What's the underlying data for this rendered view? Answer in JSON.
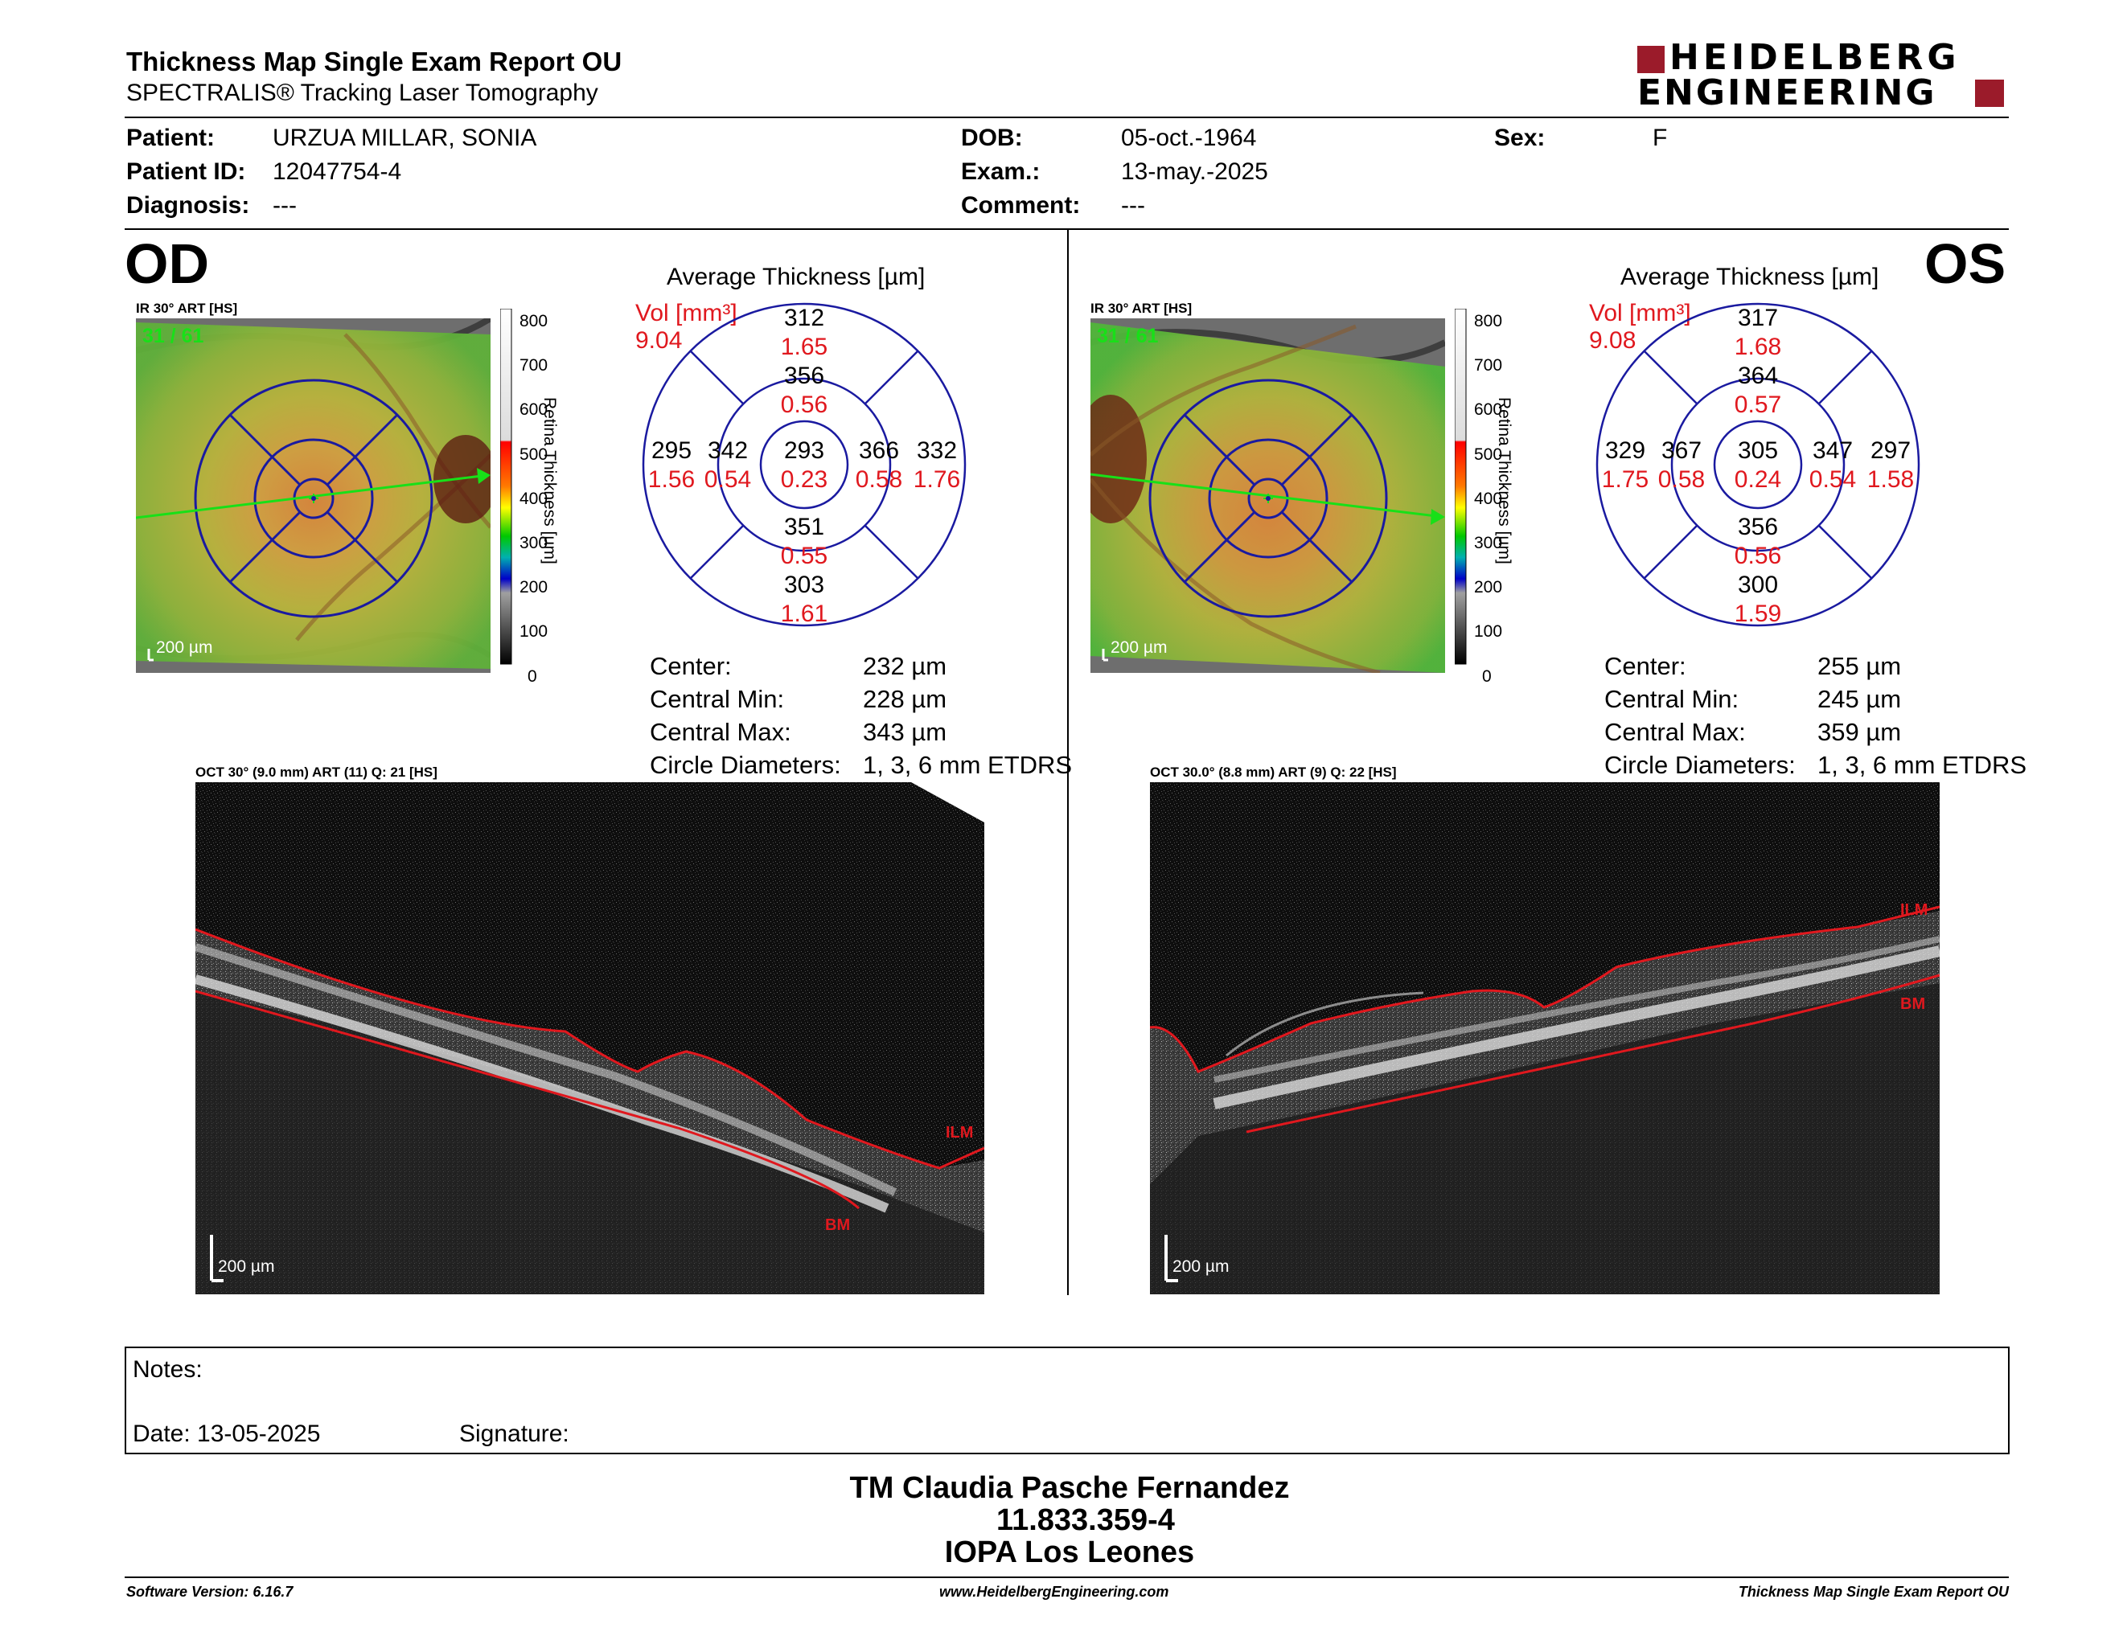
{
  "header": {
    "title": "Thickness Map Single Exam Report OU",
    "subtitle": "SPECTRALIS® Tracking Laser Tomography",
    "logo_line1": "HEIDELBERG",
    "logo_line2": "ENGINEERING"
  },
  "patient": {
    "patient_label": "Patient:",
    "patient_value": "URZUA MILLAR, SONIA",
    "id_label": "Patient ID:",
    "id_value": "12047754-4",
    "diagnosis_label": "Diagnosis:",
    "diagnosis_value": "---",
    "dob_label": "DOB:",
    "dob_value": "05-oct.-1964",
    "exam_label": "Exam.:",
    "exam_value": "13-may.-2025",
    "comment_label": "Comment:",
    "comment_value": "---",
    "sex_label": "Sex:",
    "sex_value": "F"
  },
  "od": {
    "eye": "OD",
    "ir_label": "IR 30° ART [HS]",
    "frame": "31 / 61",
    "scalebar": "200 µm",
    "chart_title": "Average Thickness [µm]",
    "vol_label": "Vol [mm³]",
    "vol_value": "9.04",
    "grid": {
      "center": {
        "t": "293",
        "v": "0.23"
      },
      "inner_sup": {
        "t": "356",
        "v": "0.56"
      },
      "inner_inf": {
        "t": "351",
        "v": "0.55"
      },
      "inner_left": {
        "t": "342",
        "v": "0.54"
      },
      "inner_right": {
        "t": "366",
        "v": "0.58"
      },
      "outer_sup": {
        "t": "312",
        "v": "1.65"
      },
      "outer_inf": {
        "t": "303",
        "v": "1.61"
      },
      "outer_left": {
        "t": "295",
        "v": "1.56"
      },
      "outer_right": {
        "t": "332",
        "v": "1.76"
      }
    },
    "stats": {
      "center_label": "Center:",
      "center_value": "232 µm",
      "min_label": "Central Min:",
      "min_value": "228 µm",
      "max_label": "Central Max:",
      "max_value": "343 µm",
      "diam_label": "Circle Diameters:",
      "diam_value": "1, 3, 6 mm ETDRS"
    },
    "oct_label": "OCT 30° (9.0 mm) ART (11) Q: 21 [HS]",
    "oct_scalebar": "200 µm",
    "ilm": "ILM",
    "bm": "BM"
  },
  "os": {
    "eye": "OS",
    "ir_label": "IR 30° ART [HS]",
    "frame": "31 / 61",
    "scalebar": "200 µm",
    "chart_title": "Average Thickness [µm]",
    "vol_label": "Vol [mm³]",
    "vol_value": "9.08",
    "grid": {
      "center": {
        "t": "305",
        "v": "0.24"
      },
      "inner_sup": {
        "t": "364",
        "v": "0.57"
      },
      "inner_inf": {
        "t": "356",
        "v": "0.56"
      },
      "inner_left": {
        "t": "367",
        "v": "0.58"
      },
      "inner_right": {
        "t": "347",
        "v": "0.54"
      },
      "outer_sup": {
        "t": "317",
        "v": "1.68"
      },
      "outer_inf": {
        "t": "300",
        "v": "1.59"
      },
      "outer_left": {
        "t": "329",
        "v": "1.75"
      },
      "outer_right": {
        "t": "297",
        "v": "1.58"
      }
    },
    "stats": {
      "center_label": "Center:",
      "center_value": "255 µm",
      "min_label": "Central Min:",
      "min_value": "245 µm",
      "max_label": "Central Max:",
      "max_value": "359 µm",
      "diam_label": "Circle Diameters:",
      "diam_value": "1, 3, 6 mm ETDRS"
    },
    "oct_label": "OCT 30.0° (8.8 mm) ART (9) Q: 22 [HS]",
    "oct_scalebar": "200 µm",
    "ilm": "ILM",
    "bm": "BM"
  },
  "colorscale": {
    "ticks": [
      "800",
      "700",
      "600",
      "500",
      "400",
      "300",
      "200",
      "100",
      "0"
    ],
    "axis_label": "Retina Thickness [µm]"
  },
  "notes": {
    "notes_label": "Notes:",
    "date_label": "Date: 13-05-2025",
    "signature_label": "Signature:"
  },
  "signoff": {
    "line1": "TM Claudia Pasche Fernandez",
    "line2": "11.833.359-4",
    "line3": "IOPA Los Leones"
  },
  "footer": {
    "left": "Software Version: 6.16.7",
    "center": "www.HeidelbergEngineering.com",
    "right": "Thickness Map Single Exam Report OU"
  },
  "colors": {
    "grid_blue": "#1a1aa0",
    "value_red": "#e0181e",
    "logo_red": "#9b1b2a",
    "fovea_green": "#18e018"
  }
}
